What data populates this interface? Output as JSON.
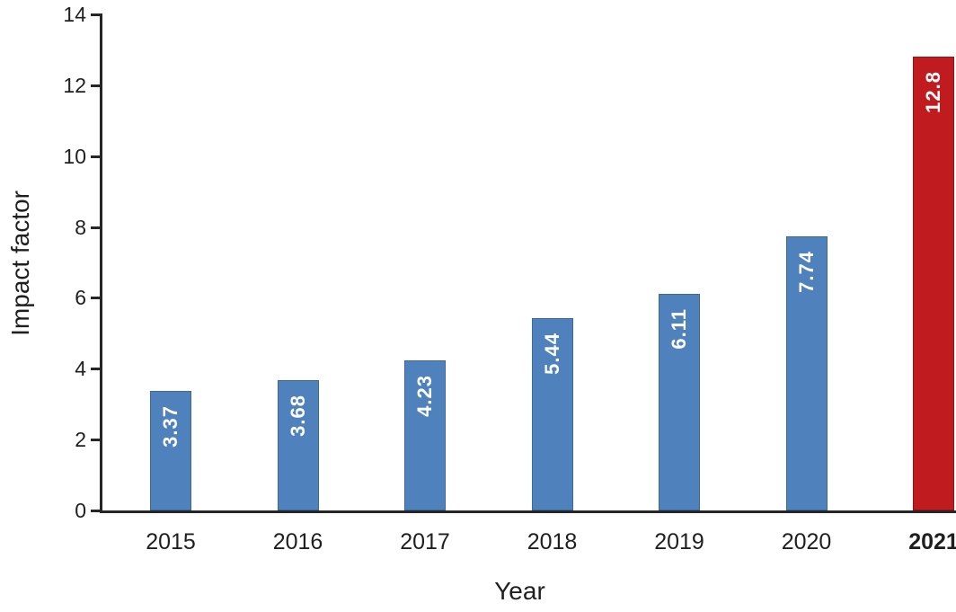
{
  "chart_data": {
    "type": "bar",
    "title": "",
    "xlabel": "Year",
    "ylabel": "Impact factor",
    "categories": [
      "2015",
      "2016",
      "2017",
      "2018",
      "2019",
      "2020",
      "2021"
    ],
    "values": [
      3.37,
      3.68,
      4.23,
      5.44,
      6.11,
      7.74,
      12.8
    ],
    "value_labels": [
      "3.37",
      "3.68",
      "4.23",
      "5.44",
      "6.11",
      "7.74",
      "12.8"
    ],
    "value_label_orientation": "vertical-bottom-to-top",
    "value_label_position": "inside-end",
    "ylim": [
      0,
      14
    ],
    "yticks": [
      0,
      2,
      4,
      6,
      8,
      10,
      12,
      14
    ],
    "grid": false,
    "legend": "none",
    "highlight_category": "2021",
    "colors": {
      "bar_default": "#4f81bd",
      "bar_default_border": "#3a699f",
      "bar_highlight": "#c01b1f",
      "bar_highlight_border": "#941114",
      "axis": "#262626",
      "tick_text": "#1f1f1f",
      "value_label_text": "#ffffff"
    }
  }
}
